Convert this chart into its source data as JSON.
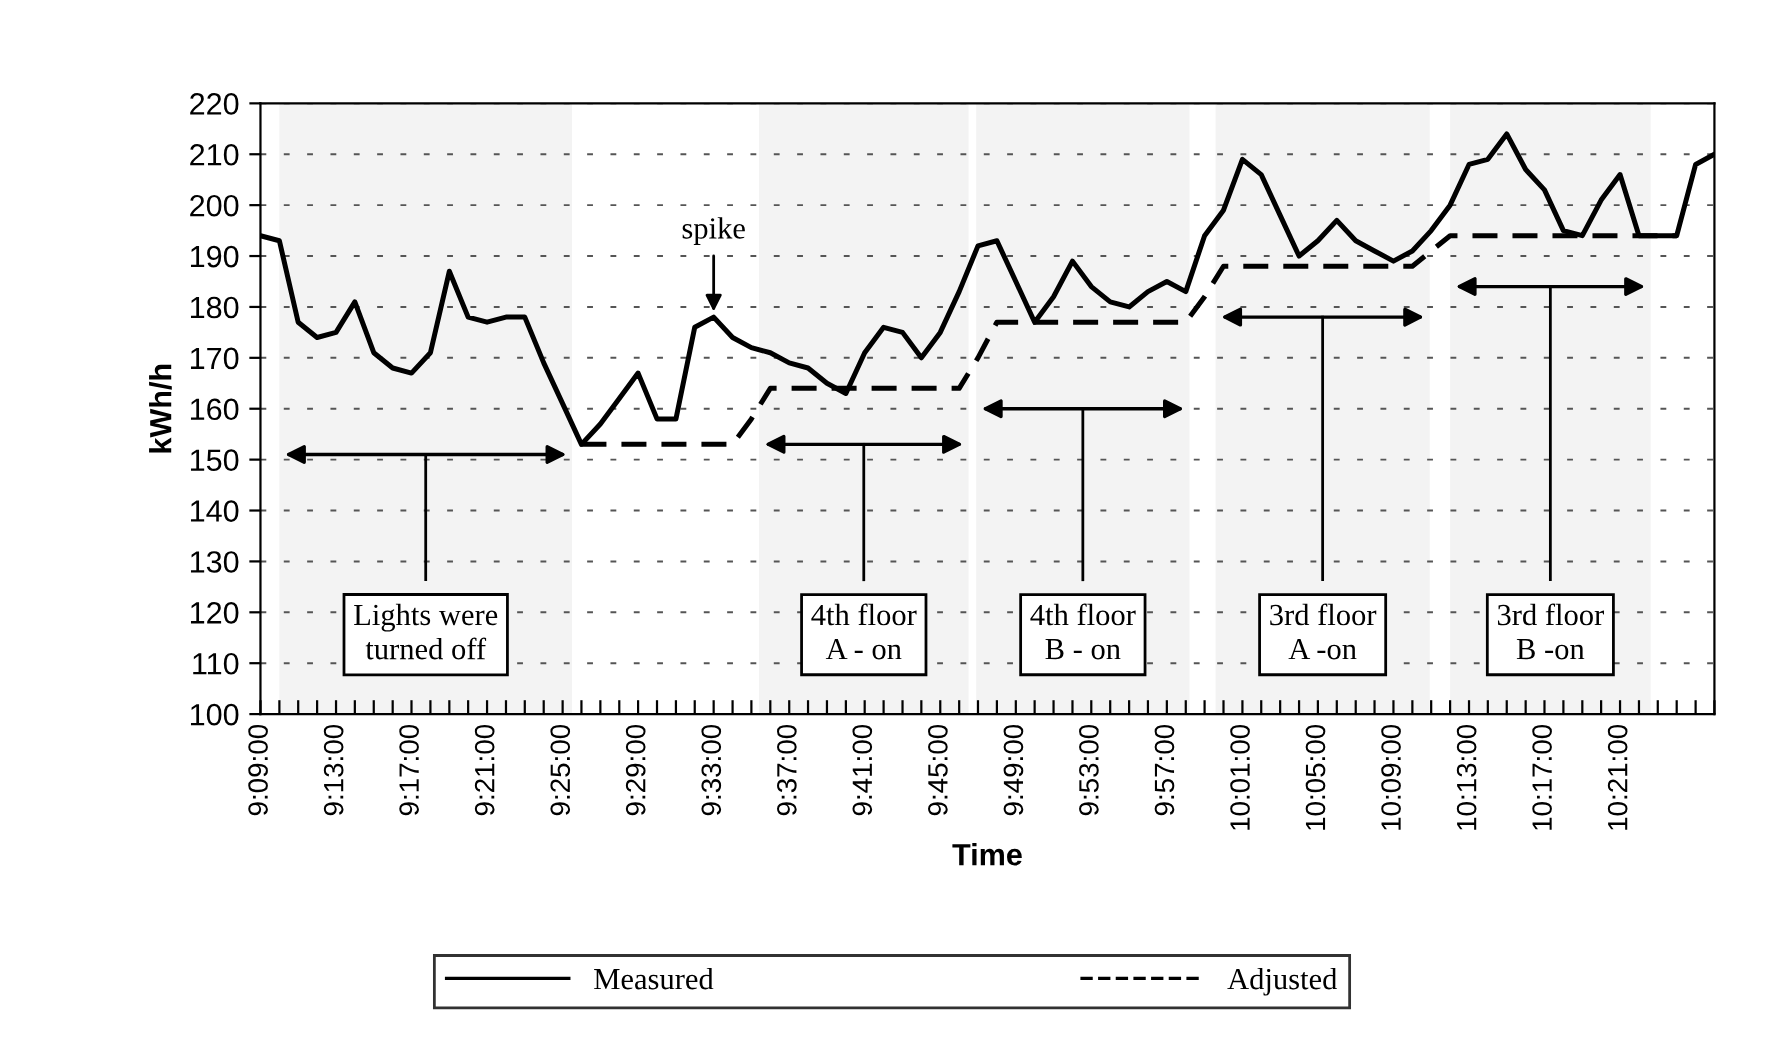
{
  "chart_data": {
    "type": "line",
    "xlabel": "Time",
    "ylabel": "kWh/h",
    "grid": "y",
    "legend": "bottom",
    "x": [
      9.15,
      9.1667,
      9.1833,
      9.2,
      9.2167,
      9.2333,
      9.25,
      9.2667,
      9.2833,
      9.3,
      9.3167,
      9.3333,
      9.35,
      9.3667,
      9.3833,
      9.4,
      9.4167,
      9.4333,
      9.45,
      9.4667,
      9.4833,
      9.5,
      9.5167,
      9.5333,
      9.55,
      9.5667,
      9.5833,
      9.6,
      9.6167,
      9.6333,
      9.65,
      9.6667,
      9.6833,
      9.7,
      9.7167,
      9.7333,
      9.75,
      9.7667,
      9.7833,
      9.8,
      9.8167,
      9.8333,
      9.85,
      9.8667,
      9.8833,
      9.9,
      9.9167,
      9.9333,
      9.95,
      9.9667,
      9.9833,
      10.0,
      10.0167,
      10.0333,
      10.05,
      10.0667,
      10.0833,
      10.1,
      10.1167,
      10.1333,
      10.15,
      10.1667,
      10.1833,
      10.2,
      10.2167,
      10.2333,
      10.25,
      10.2667,
      10.2833,
      10.3,
      10.3167,
      10.3333,
      10.35,
      10.3667,
      10.3833,
      10.4,
      10.4167,
      10.4333
    ],
    "series": [
      {
        "name": "Measured",
        "color": "#000000",
        "line_style": "solid",
        "values": [
          194,
          193,
          177,
          174,
          175,
          181,
          171,
          168,
          167,
          171,
          187,
          178,
          177,
          178,
          178,
          169,
          161,
          153,
          157,
          162,
          167,
          158,
          158,
          176,
          178,
          174,
          172,
          171,
          169,
          168,
          165,
          163,
          171,
          176,
          175,
          170,
          175,
          183,
          192,
          193,
          185,
          177,
          182,
          189,
          184,
          181,
          180,
          183,
          185,
          183,
          194,
          199,
          209,
          206,
          198,
          190,
          193,
          197,
          193,
          191,
          189,
          191,
          195,
          200,
          208,
          209,
          214,
          207,
          203,
          195,
          194,
          201,
          206,
          194,
          194,
          194,
          208,
          210
        ]
      },
      {
        "name": "Adjusted",
        "color": "#000000",
        "line_style": "dashed",
        "values": [
          null,
          null,
          null,
          null,
          null,
          null,
          null,
          null,
          null,
          null,
          null,
          null,
          null,
          null,
          null,
          null,
          null,
          153,
          153,
          153,
          153,
          153,
          153,
          153,
          153,
          153,
          158,
          164,
          164,
          164,
          164,
          164,
          164,
          164,
          164,
          164,
          164,
          164,
          170,
          177,
          177,
          177,
          177,
          177,
          177,
          177,
          177,
          177,
          177,
          177,
          182,
          188,
          188,
          188,
          188,
          188,
          188,
          188,
          188,
          188,
          188,
          188,
          191,
          194,
          194,
          194,
          194,
          194,
          194,
          194,
          194,
          194,
          194,
          194,
          194,
          194,
          null,
          null
        ]
      }
    ],
    "xlim": [
      9.15,
      10.4333
    ],
    "xticks": [
      {
        "value": 9.15,
        "label": "9:09:00"
      },
      {
        "value": 9.1667,
        "label": null
      },
      {
        "value": 9.1833,
        "label": null
      },
      {
        "value": 9.2,
        "label": null
      },
      {
        "value": 9.2167,
        "label": "9:13:00"
      },
      {
        "value": 9.2333,
        "label": null
      },
      {
        "value": 9.25,
        "label": null
      },
      {
        "value": 9.2667,
        "label": null
      },
      {
        "value": 9.2833,
        "label": "9:17:00"
      },
      {
        "value": 9.3,
        "label": null
      },
      {
        "value": 9.3167,
        "label": null
      },
      {
        "value": 9.3333,
        "label": null
      },
      {
        "value": 9.35,
        "label": "9:21:00"
      },
      {
        "value": 9.3667,
        "label": null
      },
      {
        "value": 9.3833,
        "label": null
      },
      {
        "value": 9.4,
        "label": null
      },
      {
        "value": 9.4167,
        "label": "9:25:00"
      },
      {
        "value": 9.4333,
        "label": null
      },
      {
        "value": 9.45,
        "label": null
      },
      {
        "value": 9.4667,
        "label": null
      },
      {
        "value": 9.4833,
        "label": "9:29:00"
      },
      {
        "value": 9.5,
        "label": null
      },
      {
        "value": 9.5167,
        "label": null
      },
      {
        "value": 9.5333,
        "label": null
      },
      {
        "value": 9.55,
        "label": "9:33:00"
      },
      {
        "value": 9.5667,
        "label": null
      },
      {
        "value": 9.5833,
        "label": null
      },
      {
        "value": 9.6,
        "label": null
      },
      {
        "value": 9.6167,
        "label": "9:37:00"
      },
      {
        "value": 9.6333,
        "label": null
      },
      {
        "value": 9.65,
        "label": null
      },
      {
        "value": 9.6667,
        "label": null
      },
      {
        "value": 9.6833,
        "label": "9:41:00"
      },
      {
        "value": 9.7,
        "label": null
      },
      {
        "value": 9.7167,
        "label": null
      },
      {
        "value": 9.7333,
        "label": null
      },
      {
        "value": 9.75,
        "label": "9:45:00"
      },
      {
        "value": 9.7667,
        "label": null
      },
      {
        "value": 9.7833,
        "label": null
      },
      {
        "value": 9.8,
        "label": null
      },
      {
        "value": 9.8167,
        "label": "9:49:00"
      },
      {
        "value": 9.8333,
        "label": null
      },
      {
        "value": 9.85,
        "label": null
      },
      {
        "value": 9.8667,
        "label": null
      },
      {
        "value": 9.8833,
        "label": "9:53:00"
      },
      {
        "value": 9.9,
        "label": null
      },
      {
        "value": 9.9167,
        "label": null
      },
      {
        "value": 9.9333,
        "label": null
      },
      {
        "value": 9.95,
        "label": "9:57:00"
      },
      {
        "value": 9.9667,
        "label": null
      },
      {
        "value": 9.9833,
        "label": null
      },
      {
        "value": 10.0,
        "label": null
      },
      {
        "value": 10.0167,
        "label": "10:01:00"
      },
      {
        "value": 10.0333,
        "label": null
      },
      {
        "value": 10.05,
        "label": null
      },
      {
        "value": 10.0667,
        "label": null
      },
      {
        "value": 10.0833,
        "label": "10:05:00"
      },
      {
        "value": 10.1,
        "label": null
      },
      {
        "value": 10.1167,
        "label": null
      },
      {
        "value": 10.1333,
        "label": null
      },
      {
        "value": 10.15,
        "label": "10:09:00"
      },
      {
        "value": 10.1667,
        "label": null
      },
      {
        "value": 10.1833,
        "label": null
      },
      {
        "value": 10.2,
        "label": null
      },
      {
        "value": 10.2167,
        "label": "10:13:00"
      },
      {
        "value": 10.2333,
        "label": null
      },
      {
        "value": 10.25,
        "label": null
      },
      {
        "value": 10.2667,
        "label": null
      },
      {
        "value": 10.2833,
        "label": "10:17:00"
      },
      {
        "value": 10.3,
        "label": null
      },
      {
        "value": 10.3167,
        "label": null
      },
      {
        "value": 10.3333,
        "label": null
      },
      {
        "value": 10.35,
        "label": "10:21:00"
      },
      {
        "value": 10.3667,
        "label": null
      },
      {
        "value": 10.3833,
        "label": null
      },
      {
        "value": 10.4,
        "label": null
      },
      {
        "value": 10.4167,
        "label": null
      },
      {
        "value": 10.4333,
        "label": null
      }
    ],
    "ylim": [
      100,
      220
    ],
    "yticks": [
      100,
      110,
      120,
      130,
      140,
      150,
      160,
      170,
      180,
      190,
      200,
      210,
      220
    ],
    "annotations": [
      {
        "text": "spike",
        "x": 9.55,
        "y": 178
      }
    ],
    "bands": [
      {
        "axis": "x",
        "from": 9.1667,
        "to": 9.425,
        "label": "Lights were\nturned off"
      },
      {
        "axis": "x",
        "from": 9.59,
        "to": 9.775,
        "label": "4th floor\nA - on"
      },
      {
        "axis": "x",
        "from": 9.7817,
        "to": 9.97,
        "label": "4th floor\nB - on"
      },
      {
        "axis": "x",
        "from": 9.993,
        "to": 10.182,
        "label": "3rd floor\nA -on"
      },
      {
        "axis": "x",
        "from": 10.2,
        "to": 10.377,
        "label": "3rd floor\nB -on"
      }
    ]
  }
}
